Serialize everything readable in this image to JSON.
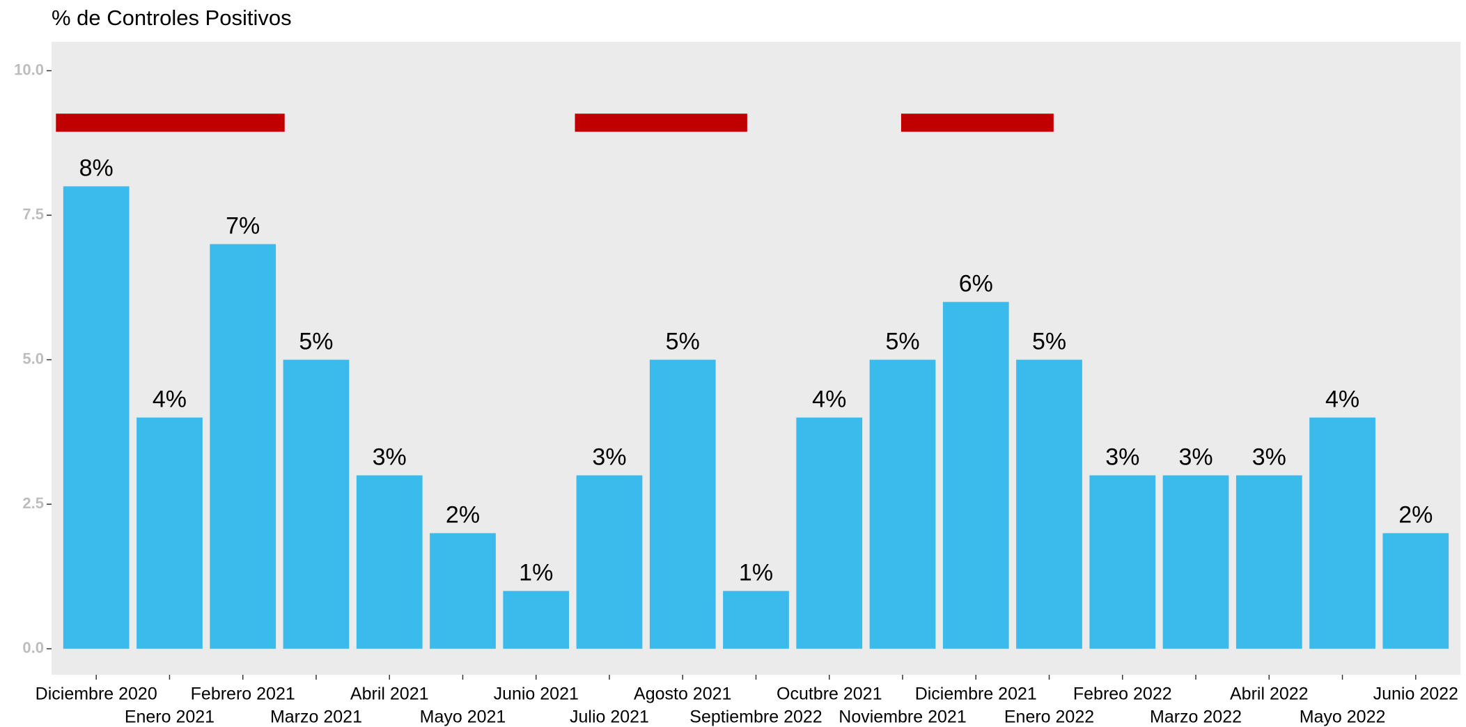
{
  "chart_data": {
    "type": "bar",
    "title": "% de Controles Positivos",
    "categories": [
      "Diciembre 2020",
      "Enero 2021",
      "Febrero 2021",
      "Marzo 2021",
      "Abril 2021",
      "Mayo 2021",
      "Junio 2021",
      "Julio 2021",
      "Agosto 2021",
      "Septiembre 2022",
      "Ocutbre 2021",
      "Noviembre 2021",
      "Diciembre 2021",
      "Enero 2022",
      "Febreo 2022",
      "Marzo 2022",
      "Abril 2022",
      "Mayo 2022",
      "Junio 2022"
    ],
    "values": [
      8,
      4,
      7,
      5,
      3,
      2,
      1,
      3,
      5,
      1,
      4,
      5,
      6,
      5,
      3,
      3,
      3,
      4,
      2
    ],
    "value_labels": [
      "8%",
      "4%",
      "7%",
      "5%",
      "3%",
      "2%",
      "1%",
      "3%",
      "5%",
      "1%",
      "4%",
      "5%",
      "6%",
      "5%",
      "3%",
      "3%",
      "3%",
      "4%",
      "2%"
    ],
    "color": "#3bbaec",
    "ylim": [
      -0.45,
      10.5
    ],
    "yticks": [
      {
        "value": 0,
        "label": "0.0"
      },
      {
        "value": 2.5,
        "label": "2.5"
      },
      {
        "value": 5,
        "label": "5.0"
      },
      {
        "value": 7.5,
        "label": "7.5"
      },
      {
        "value": 10,
        "label": "10.0"
      }
    ],
    "highlights": [
      {
        "xlim": [
          -0.55,
          2.57
        ],
        "y": 9.1
      },
      {
        "xlim": [
          6.53,
          8.88
        ],
        "y": 9.1
      },
      {
        "xlim": [
          10.98,
          13.06
        ],
        "y": 9.1
      }
    ],
    "highlight_color": "#c00000",
    "grid": false
  }
}
